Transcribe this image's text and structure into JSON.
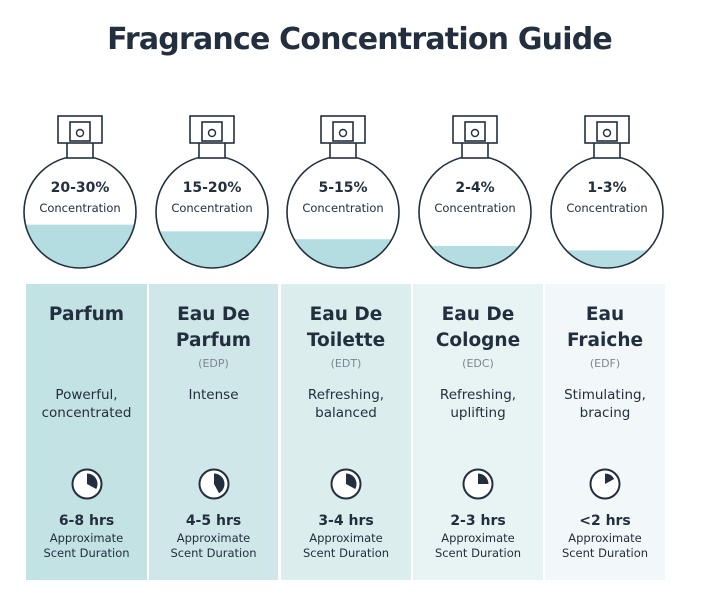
{
  "title": "Fragrance Concentration Guide",
  "colors": {
    "text": "#232f3e",
    "liquid": "#b3dde0",
    "column_1": "#c2e2e4",
    "column_2": "#cfe7e9",
    "column_3": "#dcedee",
    "column_4": "#e8f3f4",
    "column_5": "#f2f8f9"
  },
  "duration_label": "Approximate\nScent Duration",
  "concentration_label": "Concentration",
  "fragrances": [
    {
      "name": "Parfum",
      "abbr": "",
      "concentration": "20-30%",
      "description": "Powerful,\nconcentrated",
      "duration": "6-8 hrs",
      "fill_level": 0.28,
      "clock_hours": 8
    },
    {
      "name": "Eau De\nParfum",
      "abbr": "(EDP)",
      "concentration": "15-20%",
      "description": "Intense",
      "duration": "4-5 hrs",
      "fill_level": 0.22,
      "clock_hours": 5
    },
    {
      "name": "Eau De\nToilette",
      "abbr": "(EDT)",
      "concentration": "5-15%",
      "description": "Refreshing,\nbalanced",
      "duration": "3-4 hrs",
      "fill_level": 0.15,
      "clock_hours": 4
    },
    {
      "name": "Eau De\nCologne",
      "abbr": "(EDC)",
      "concentration": "2-4%",
      "description": "Refreshing,\nuplifting",
      "duration": "2-3 hrs",
      "fill_level": 0.09,
      "clock_hours": 3
    },
    {
      "name": "Eau\nFraiche",
      "abbr": "(EDF)",
      "concentration": "1-3%",
      "description": "Stimulating,\nbracing",
      "duration": "<2 hrs",
      "fill_level": 0.05,
      "clock_hours": 2
    }
  ]
}
